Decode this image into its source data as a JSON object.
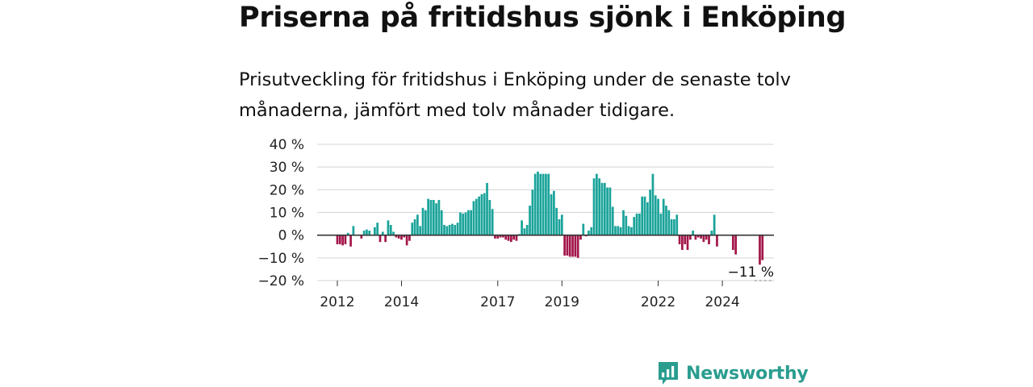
{
  "title": "Priserna på fritidshus sjönk i Enköping",
  "subtitle": "Prisutveckling för fritidshus i Enköping under de senaste tolv månaderna, jämfört med tolv månader tidigare.",
  "brand": {
    "name": "Newsworthy"
  },
  "colors": {
    "positive": "#1aa39a",
    "negative": "#a3174a",
    "grid": "#d4d4d4",
    "zero": "#333333"
  },
  "chart_data": {
    "type": "bar",
    "ylim": [
      -20,
      40
    ],
    "yticks": [
      "40 %",
      "30 %",
      "20 %",
      "10 %",
      "0 %",
      "−10 %",
      "−20 %"
    ],
    "ytick_values": [
      40,
      30,
      20,
      10,
      0,
      -10,
      -20
    ],
    "xticks": [
      "2012",
      "2014",
      "2017",
      "2019",
      "2022",
      "2024"
    ],
    "xtick_dates": [
      "2012-01",
      "2014-01",
      "2017-01",
      "2019-01",
      "2022-01",
      "2024-01"
    ],
    "x_start": "2012-01",
    "x_end": "2025-12",
    "annotation": "−11 %",
    "series": [
      {
        "start": "2012-01",
        "values": [
          -4,
          -4,
          -4.5,
          -4,
          1,
          -5,
          4,
          0,
          0,
          -1.5,
          2,
          2.5,
          2,
          0,
          3.5,
          5.5,
          -3,
          1.5,
          -3,
          6.5,
          4.5,
          1.5,
          -1,
          -1.5,
          -2,
          -1,
          -4.5,
          -2.5,
          5.5,
          7,
          9,
          4,
          12,
          11,
          16,
          15.5,
          15.5,
          14,
          15.5,
          11,
          4.5,
          4,
          4.5,
          5,
          4.5,
          5.5,
          10,
          9.5,
          10,
          11,
          11,
          15,
          16,
          17,
          18,
          18.5,
          23,
          15.5,
          11.5,
          -1.5,
          -1.5,
          -1,
          -1,
          -2,
          -2.5,
          -3,
          -2,
          -2.5,
          0.5,
          6.5,
          3,
          4.5,
          13,
          20,
          27,
          28,
          27,
          27,
          27,
          27,
          18,
          19.5,
          12,
          7,
          9,
          -9,
          -9,
          -9.5,
          -9.5,
          -9.5,
          -10,
          -2,
          5,
          -0.5,
          2,
          3.5,
          25,
          27,
          25,
          23,
          23,
          21,
          21,
          12.5,
          4,
          4,
          3.5,
          11,
          8.5,
          4,
          3.5,
          8,
          9.5,
          9.5,
          17,
          17,
          14.5,
          20,
          27,
          17.5,
          16,
          9.5,
          16,
          13,
          11,
          7,
          7,
          9,
          -4,
          -6.5,
          -4,
          -6.5,
          -2,
          2,
          -2,
          -1,
          -1.5,
          -3,
          -2,
          -4,
          2,
          9,
          -5,
          null,
          null,
          null,
          null,
          null,
          -6.5,
          -8.5,
          null,
          null,
          null,
          null,
          null,
          null,
          null,
          null,
          -13,
          -11
        ]
      }
    ]
  }
}
